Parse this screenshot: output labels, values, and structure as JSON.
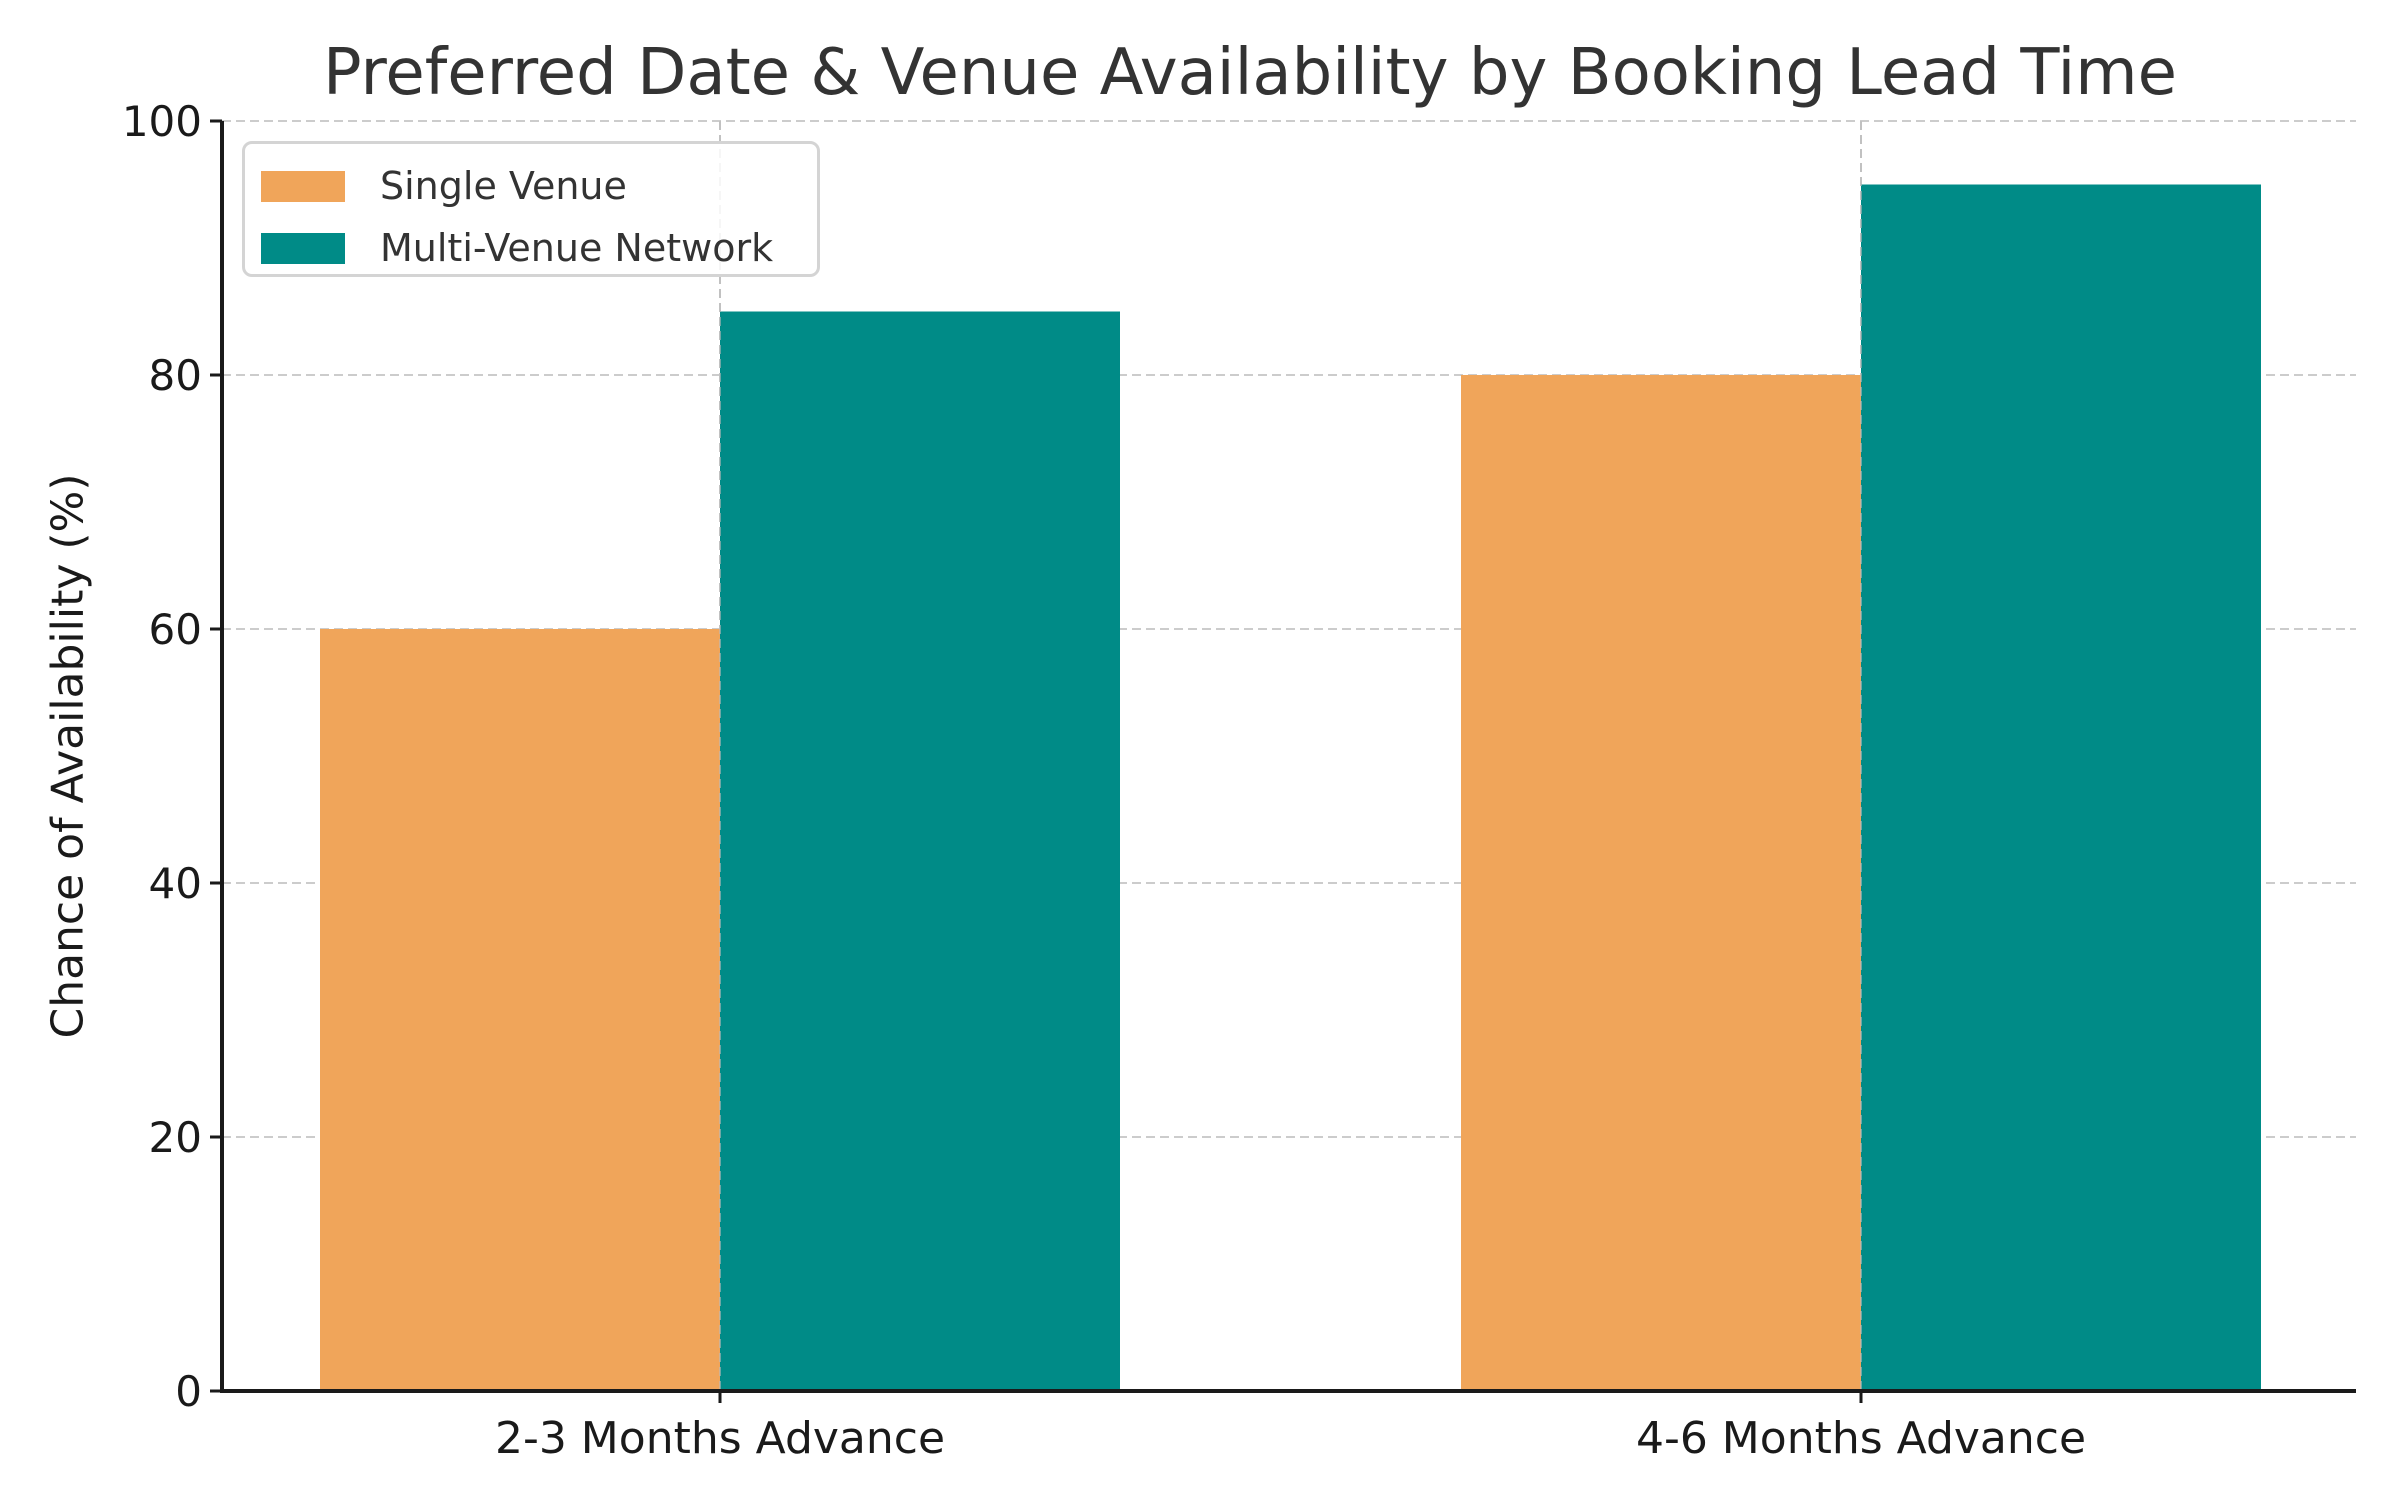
{
  "chart_data": {
    "type": "bar",
    "title": "Preferred Date & Venue Availability by Booking Lead Time",
    "xlabel": "",
    "ylabel": "Chance of Availability (%)",
    "categories": [
      "2-3 Months Advance",
      "4-6 Months Advance"
    ],
    "series": [
      {
        "name": "Single Venue",
        "color": "#F0A55A",
        "values": [
          60,
          80
        ]
      },
      {
        "name": "Multi-Venue Network",
        "color": "#008B87",
        "values": [
          85,
          95
        ]
      }
    ],
    "ylim": [
      0,
      100
    ],
    "yticks": [
      0,
      20,
      40,
      60,
      80,
      100
    ],
    "grid": true,
    "grid_style": "dashed",
    "legend_position": "upper left"
  },
  "legend": {
    "items": [
      {
        "label": "Single Venue",
        "color": "#F0A55A"
      },
      {
        "label": "Multi-Venue Network",
        "color": "#008B87"
      }
    ]
  }
}
